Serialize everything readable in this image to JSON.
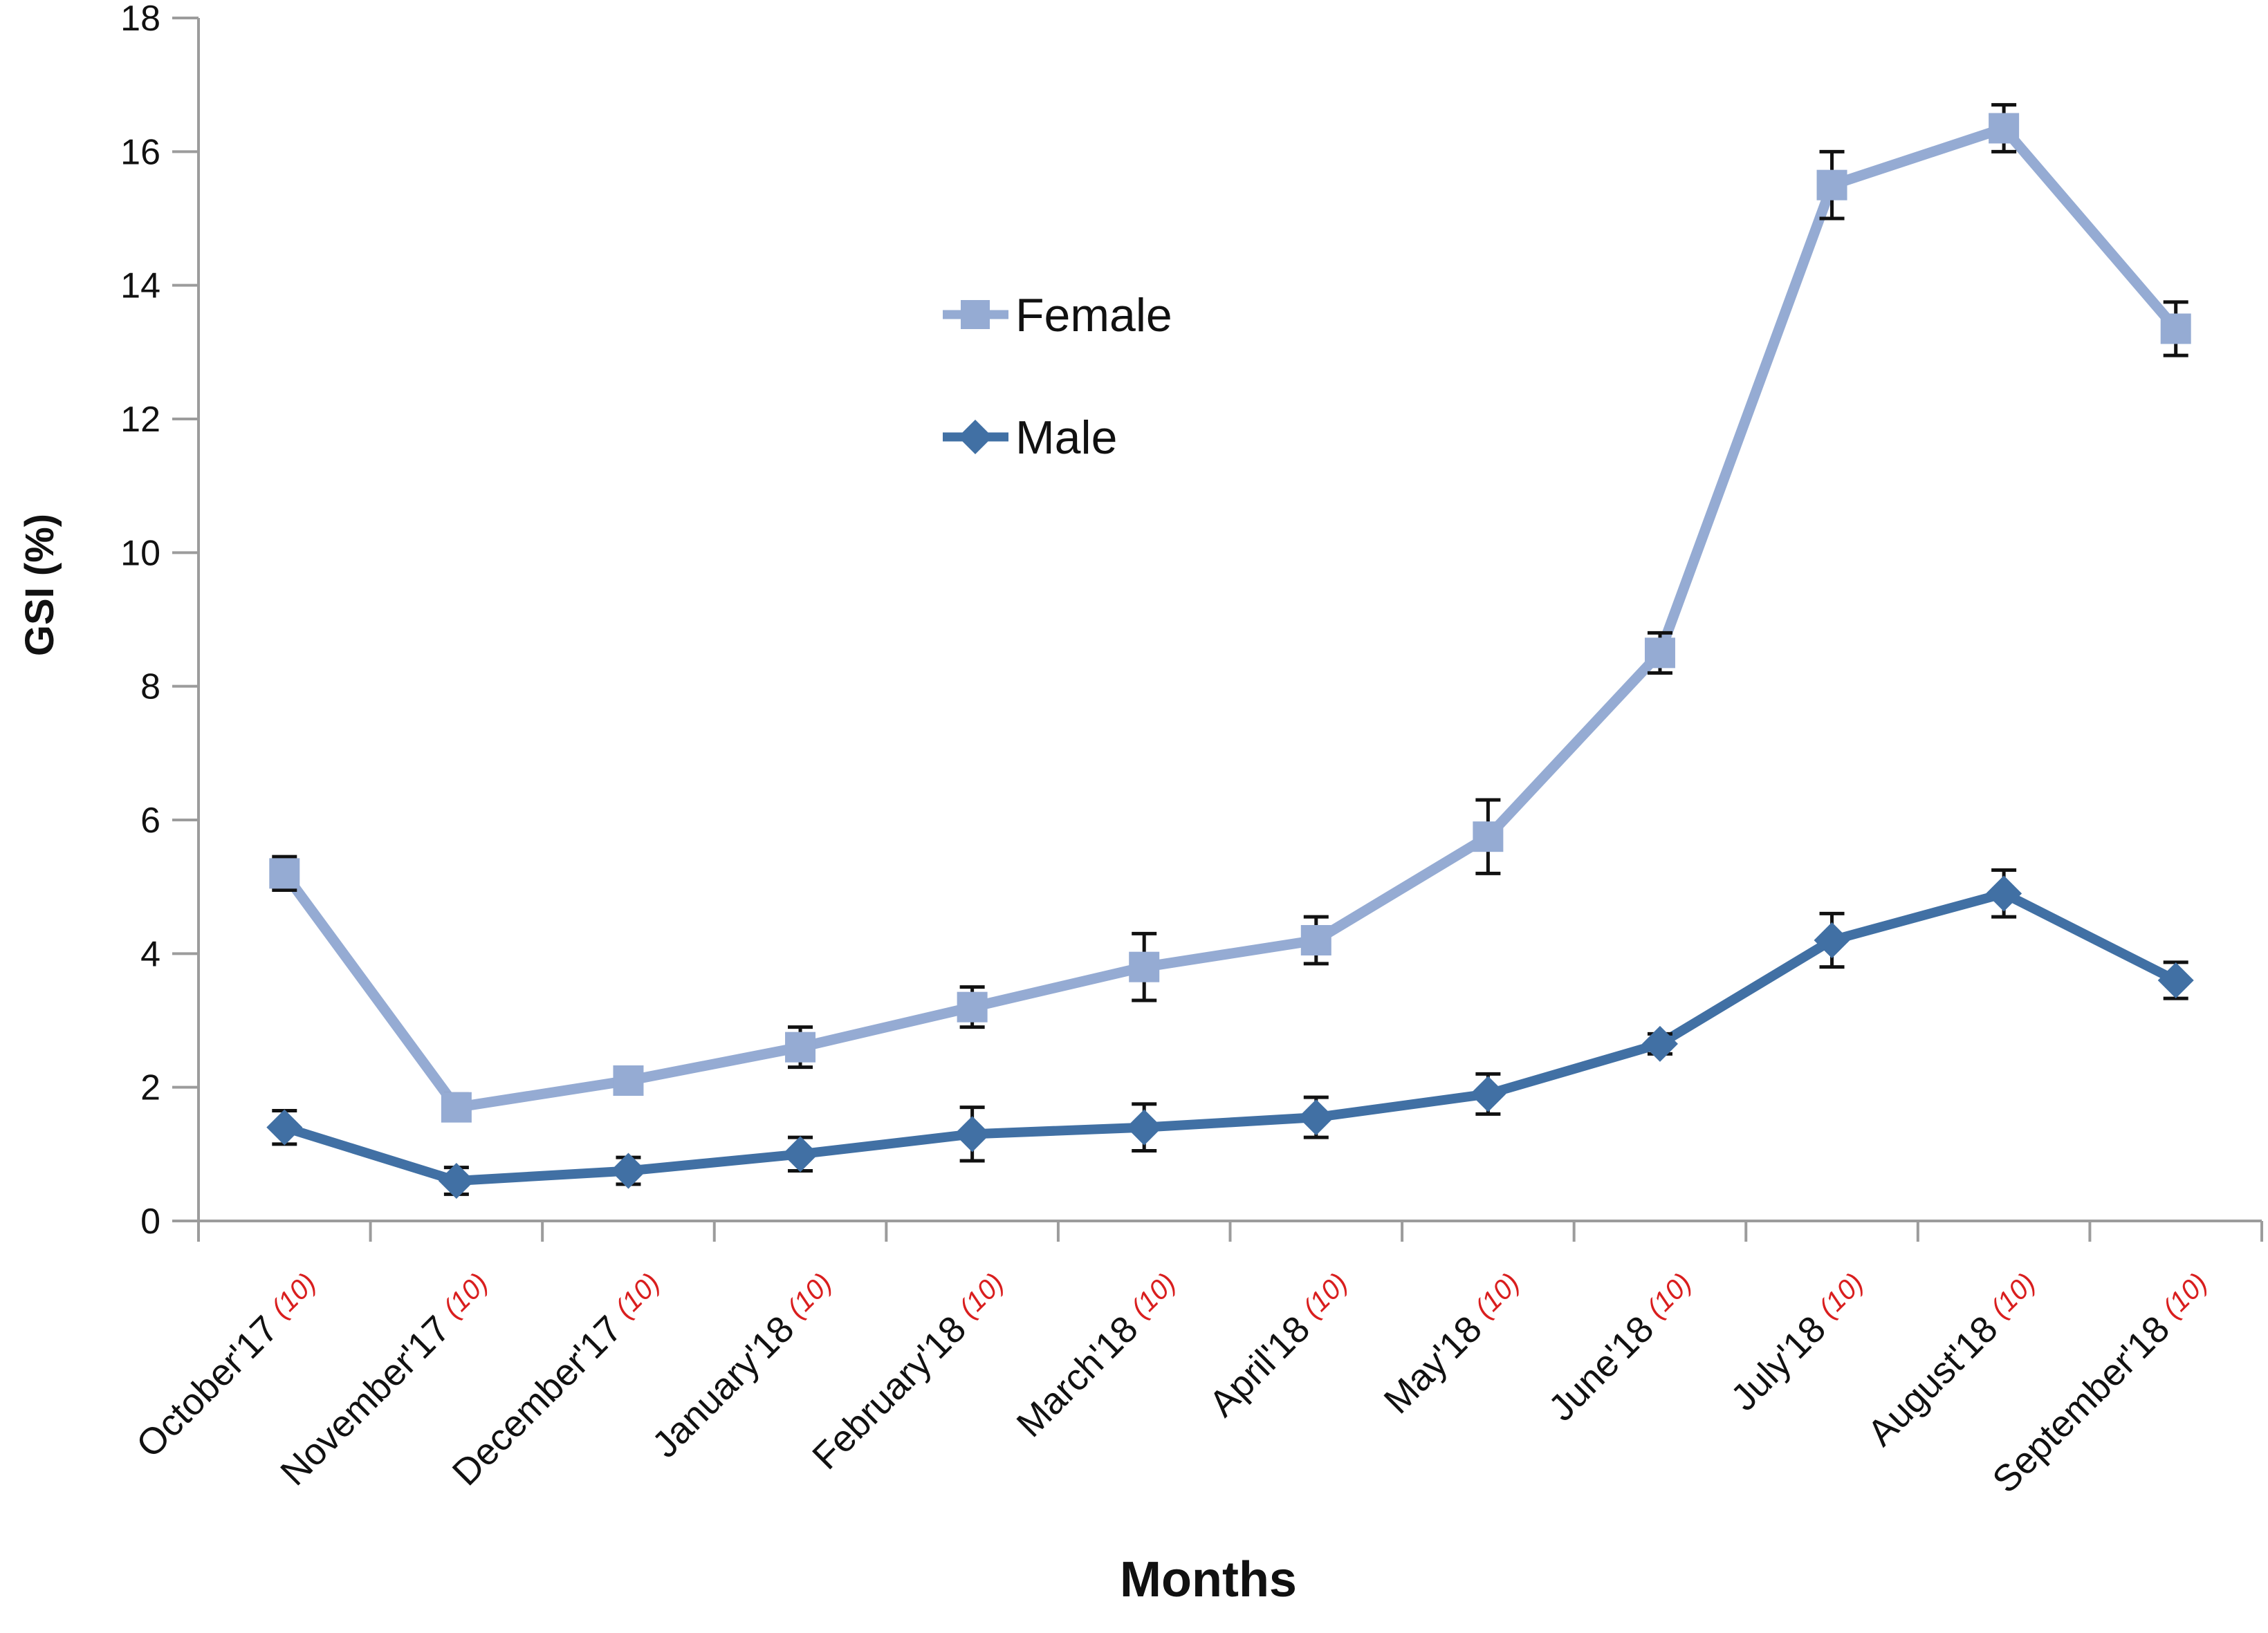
{
  "chart_data": {
    "type": "line",
    "title": "",
    "xlabel": "Months",
    "ylabel": "GSI (%)",
    "ylim": [
      0,
      18
    ],
    "ytick_step": 2,
    "yticks": [
      0,
      2,
      4,
      6,
      8,
      10,
      12,
      14,
      16,
      18
    ],
    "grid": false,
    "legend_position": "inside upper-center-left",
    "categories": [
      "October'17",
      "November'17",
      "December'17",
      "January'18",
      "February'18",
      "March'18",
      "April'18",
      "May'18",
      "June'18",
      "July'18",
      "August'18",
      "September'18"
    ],
    "category_sample_suffix": "(10)",
    "series": [
      {
        "name": "Female",
        "marker": "square",
        "color": "#95ABD3",
        "values": [
          5.2,
          1.7,
          2.1,
          2.6,
          3.2,
          3.8,
          4.2,
          5.75,
          8.5,
          15.5,
          16.35,
          13.35
        ],
        "errors": [
          0.25,
          0.2,
          0.2,
          0.3,
          0.3,
          0.5,
          0.35,
          0.55,
          0.3,
          0.5,
          0.35,
          0.4
        ]
      },
      {
        "name": "Male",
        "marker": "diamond",
        "color": "#4170A4",
        "values": [
          1.4,
          0.6,
          0.75,
          1.0,
          1.3,
          1.4,
          1.55,
          1.9,
          2.65,
          4.2,
          4.9,
          3.6
        ],
        "errors": [
          0.25,
          0.2,
          0.2,
          0.25,
          0.4,
          0.35,
          0.3,
          0.3,
          0.15,
          0.4,
          0.35,
          0.27
        ]
      }
    ],
    "colors": {
      "sample_size": "#d91e1e",
      "axis": "#9c9c9c",
      "text": "#111111",
      "error_bar": "#111111"
    }
  }
}
